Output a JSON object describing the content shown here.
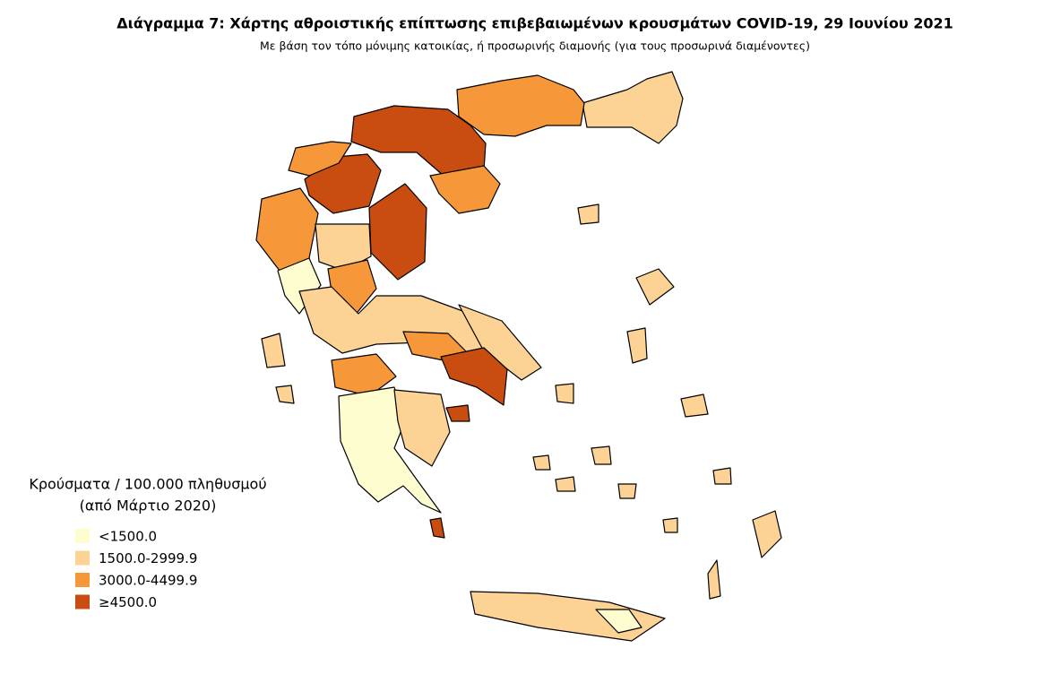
{
  "title": "Διάγραμμα 7: Χάρτης αθροιστικής επίπτωσης επιβεβαιωμένων κρουσμάτων COVID-19, 29 Ιουνίου 2021",
  "subtitle": "Με βάση τον τόπο μόνιμης κατοικίας, ή προσωρινής διαμονής (για τους προσωρινά διαμένοντες)",
  "legend": {
    "title": [
      "Κρούσματα / 100.000 πληθυσμού",
      "(από Μάρτιο 2020)"
    ],
    "items": [
      {
        "label": "<1500.0",
        "color": "#fefdd0"
      },
      {
        "label": "1500.0-2999.9",
        "color": "#fcd394"
      },
      {
        "label": "3000.0-4499.9",
        "color": "#f6983a"
      },
      {
        "label": "≥4500.0",
        "color": "#c94c10"
      }
    ]
  }
}
